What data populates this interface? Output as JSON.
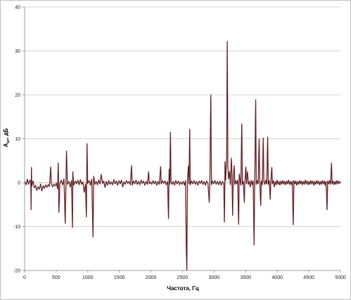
{
  "chart_data": {
    "type": "line",
    "title": "",
    "xlabel": "Частота, Гц",
    "ylabel_main": "A",
    "ylabel_sub": "ап",
    "ylabel_unit": ", дБ",
    "xlim": [
      0,
      5000
    ],
    "ylim": [
      -20,
      40
    ],
    "x_ticks": [
      0,
      500,
      1000,
      1500,
      2000,
      2500,
      3000,
      3500,
      4000,
      4500,
      5000
    ],
    "y_ticks": [
      -20,
      -10,
      0,
      10,
      20,
      30,
      40
    ],
    "grid": {
      "horizontal": true,
      "vertical": false
    },
    "legend": "none",
    "colors": {
      "series_dark": "#2b1a1a",
      "series_red": "#c0404a",
      "grid": "#c8c8c8",
      "axis": "#888888"
    },
    "series": [
      {
        "values_description": "",
        "points": [
          [
            0,
            0.3
          ],
          [
            20,
            -0.5
          ],
          [
            40,
            0.8
          ],
          [
            60,
            -0.4
          ],
          [
            80,
            0.6
          ],
          [
            95,
            0.2
          ],
          [
            100,
            -6.2
          ],
          [
            105,
            3.5
          ],
          [
            110,
            -0.8
          ],
          [
            130,
            0.4
          ],
          [
            150,
            -1.2
          ],
          [
            170,
            -0.6
          ],
          [
            190,
            -1.8
          ],
          [
            210,
            -0.9
          ],
          [
            230,
            -1.5
          ],
          [
            250,
            -0.3
          ],
          [
            270,
            -1.9
          ],
          [
            290,
            -0.7
          ],
          [
            310,
            -1.3
          ],
          [
            330,
            -0.5
          ],
          [
            350,
            -1.1
          ],
          [
            370,
            -0.4
          ],
          [
            390,
            -0.9
          ],
          [
            410,
            3.6
          ],
          [
            420,
            -0.2
          ],
          [
            440,
            -1.0
          ],
          [
            460,
            -0.3
          ],
          [
            480,
            -0.8
          ],
          [
            500,
            -0.1
          ],
          [
            520,
            -1.4
          ],
          [
            530,
            4.5
          ],
          [
            540,
            -6.8
          ],
          [
            555,
            -0.3
          ],
          [
            575,
            0.6
          ],
          [
            600,
            -0.5
          ],
          [
            620,
            0.9
          ],
          [
            640,
            -9.3
          ],
          [
            660,
            7.2
          ],
          [
            675,
            -0.4
          ],
          [
            700,
            0.3
          ],
          [
            720,
            -1.0
          ],
          [
            740,
            0.5
          ],
          [
            755,
            -10.2
          ],
          [
            760,
            2.5
          ],
          [
            775,
            -0.6
          ],
          [
            800,
            0.4
          ],
          [
            820,
            -0.3
          ],
          [
            840,
            0.6
          ],
          [
            860,
            -0.5
          ],
          [
            880,
            0.7
          ],
          [
            900,
            -0.4
          ],
          [
            920,
            0.2
          ],
          [
            940,
            -2.2
          ],
          [
            960,
            -0.3
          ],
          [
            975,
            -7.8
          ],
          [
            985,
            8.9
          ],
          [
            995,
            -0.2
          ],
          [
            1020,
            0.5
          ],
          [
            1040,
            -0.6
          ],
          [
            1060,
            0.8
          ],
          [
            1080,
            -12.4
          ],
          [
            1090,
            1.5
          ],
          [
            1110,
            -0.4
          ],
          [
            1130,
            0.3
          ],
          [
            1150,
            -0.5
          ],
          [
            1170,
            0.6
          ],
          [
            1190,
            -0.3
          ],
          [
            1210,
            1.9
          ],
          [
            1230,
            -0.2
          ],
          [
            1250,
            0.4
          ],
          [
            1270,
            -1.1
          ],
          [
            1290,
            0.3
          ],
          [
            1310,
            -0.6
          ],
          [
            1330,
            0.5
          ],
          [
            1350,
            -0.4
          ],
          [
            1370,
            0.2
          ],
          [
            1390,
            -0.5
          ],
          [
            1410,
            0.7
          ],
          [
            1430,
            -0.3
          ],
          [
            1450,
            0.4
          ],
          [
            1470,
            -0.6
          ],
          [
            1490,
            0.5
          ],
          [
            1510,
            -0.3
          ],
          [
            1530,
            0.6
          ],
          [
            1550,
            -1.0
          ],
          [
            1570,
            0.2
          ],
          [
            1590,
            -0.4
          ],
          [
            1610,
            0.5
          ],
          [
            1630,
            -0.2
          ],
          [
            1650,
            0.3
          ],
          [
            1670,
            -0.5
          ],
          [
            1690,
            3.9
          ],
          [
            1700,
            -0.6
          ],
          [
            1720,
            0.4
          ],
          [
            1740,
            -0.3
          ],
          [
            1760,
            0.6
          ],
          [
            1780,
            -0.4
          ],
          [
            1800,
            0.3
          ],
          [
            1820,
            -0.5
          ],
          [
            1840,
            0.6
          ],
          [
            1860,
            -0.2
          ],
          [
            1880,
            0.4
          ],
          [
            1900,
            -0.6
          ],
          [
            1920,
            0.3
          ],
          [
            1940,
            -0.4
          ],
          [
            1960,
            2.5
          ],
          [
            1970,
            -0.3
          ],
          [
            1990,
            0.2
          ],
          [
            2010,
            -0.4
          ],
          [
            2030,
            0.5
          ],
          [
            2050,
            -0.3
          ],
          [
            2070,
            0.4
          ],
          [
            2090,
            -0.6
          ],
          [
            2110,
            0.3
          ],
          [
            2130,
            -0.4
          ],
          [
            2150,
            3.7
          ],
          [
            2160,
            -0.3
          ],
          [
            2180,
            0.5
          ],
          [
            2200,
            -0.2
          ],
          [
            2220,
            0.4
          ],
          [
            2240,
            -0.5
          ],
          [
            2260,
            0.3
          ],
          [
            2275,
            -8.2
          ],
          [
            2285,
            3.1
          ],
          [
            2295,
            -0.4
          ],
          [
            2305,
            11.5
          ],
          [
            2315,
            0.2
          ],
          [
            2330,
            -0.4
          ],
          [
            2350,
            0.3
          ],
          [
            2370,
            -0.6
          ],
          [
            2390,
            0.5
          ],
          [
            2410,
            -0.3
          ],
          [
            2430,
            0.4
          ],
          [
            2450,
            -0.5
          ],
          [
            2470,
            0.2
          ],
          [
            2490,
            -0.4
          ],
          [
            2510,
            0.3
          ],
          [
            2530,
            -0.6
          ],
          [
            2545,
            0.5
          ],
          [
            2555,
            -14.0
          ],
          [
            2565,
            -20.0
          ],
          [
            2575,
            0.4
          ],
          [
            2590,
            3.8
          ],
          [
            2600,
            -0.3
          ],
          [
            2610,
            12.2
          ],
          [
            2620,
            -0.5
          ],
          [
            2640,
            0.4
          ],
          [
            2660,
            -0.3
          ],
          [
            2680,
            0.5
          ],
          [
            2700,
            -0.4
          ],
          [
            2720,
            0.3
          ],
          [
            2740,
            -0.6
          ],
          [
            2760,
            0.4
          ],
          [
            2780,
            -0.2
          ],
          [
            2800,
            0.5
          ],
          [
            2820,
            -0.4
          ],
          [
            2840,
            0.3
          ],
          [
            2860,
            -0.6
          ],
          [
            2880,
            0.4
          ],
          [
            2900,
            -0.3
          ],
          [
            2920,
            -4.5
          ],
          [
            2930,
            0.6
          ],
          [
            2945,
            20.0
          ],
          [
            2955,
            -0.5
          ],
          [
            2970,
            0.4
          ],
          [
            2990,
            -0.3
          ],
          [
            3010,
            0.5
          ],
          [
            3030,
            -0.4
          ],
          [
            3050,
            0.3
          ],
          [
            3070,
            -0.5
          ],
          [
            3090,
            0.4
          ],
          [
            3110,
            -0.6
          ],
          [
            3130,
            0.3
          ],
          [
            3150,
            -0.2
          ],
          [
            3160,
            -9.0
          ],
          [
            3170,
            4.8
          ],
          [
            3180,
            0.5
          ],
          [
            3195,
            6.2
          ],
          [
            3205,
            32.2
          ],
          [
            3215,
            3.5
          ],
          [
            3225,
            0.8
          ],
          [
            3240,
            2.6
          ],
          [
            3255,
            -0.5
          ],
          [
            3270,
            5.6
          ],
          [
            3280,
            1.8
          ],
          [
            3290,
            -7.5
          ],
          [
            3300,
            0.6
          ],
          [
            3315,
            3.9
          ],
          [
            3325,
            -0.4
          ],
          [
            3340,
            0.5
          ],
          [
            3355,
            -0.3
          ],
          [
            3370,
            0.6
          ],
          [
            3385,
            -9.5
          ],
          [
            3395,
            2.0
          ],
          [
            3410,
            0.4
          ],
          [
            3420,
            -0.6
          ],
          [
            3435,
            13.4
          ],
          [
            3445,
            -0.4
          ],
          [
            3460,
            0.3
          ],
          [
            3475,
            -4.5
          ],
          [
            3485,
            0.5
          ],
          [
            3500,
            3.6
          ],
          [
            3510,
            -0.3
          ],
          [
            3525,
            2.5
          ],
          [
            3540,
            -0.4
          ],
          [
            3555,
            0.3
          ],
          [
            3570,
            -1.0
          ],
          [
            3585,
            0.6
          ],
          [
            3600,
            -0.5
          ],
          [
            3615,
            0.4
          ],
          [
            3630,
            -14.2
          ],
          [
            3640,
            0.6
          ],
          [
            3655,
            18.9
          ],
          [
            3665,
            -0.4
          ],
          [
            3680,
            0.5
          ],
          [
            3695,
            -0.3
          ],
          [
            3710,
            10.0
          ],
          [
            3720,
            0.3
          ],
          [
            3735,
            -5.2
          ],
          [
            3745,
            0.4
          ],
          [
            3760,
            -0.5
          ],
          [
            3775,
            10.2
          ],
          [
            3785,
            0.3
          ],
          [
            3800,
            -0.4
          ],
          [
            3815,
            0.6
          ],
          [
            3830,
            -0.3
          ],
          [
            3845,
            10.4
          ],
          [
            3855,
            -0.4
          ],
          [
            3870,
            0.5
          ],
          [
            3885,
            -3.8
          ],
          [
            3895,
            0.4
          ],
          [
            3910,
            3.5
          ],
          [
            3920,
            -0.3
          ],
          [
            3935,
            0.5
          ],
          [
            3950,
            -1.0
          ],
          [
            3965,
            0.3
          ],
          [
            3980,
            -0.5
          ],
          [
            3995,
            0.6
          ],
          [
            4010,
            -0.4
          ],
          [
            4025,
            0.3
          ],
          [
            4040,
            -0.6
          ],
          [
            4055,
            0.4
          ],
          [
            4070,
            -0.3
          ],
          [
            4085,
            0.5
          ],
          [
            4100,
            -0.4
          ],
          [
            4115,
            0.3
          ],
          [
            4130,
            -0.5
          ],
          [
            4145,
            0.4
          ],
          [
            4160,
            -0.3
          ],
          [
            4175,
            0.6
          ],
          [
            4190,
            -0.4
          ],
          [
            4205,
            0.3
          ],
          [
            4220,
            -0.5
          ],
          [
            4235,
            0.4
          ],
          [
            4250,
            -9.6
          ],
          [
            4260,
            0.5
          ],
          [
            4275,
            -0.3
          ],
          [
            4290,
            0.4
          ],
          [
            4305,
            -0.6
          ],
          [
            4320,
            0.3
          ],
          [
            4335,
            -0.4
          ],
          [
            4350,
            0.5
          ],
          [
            4365,
            -0.3
          ],
          [
            4380,
            0.4
          ],
          [
            4395,
            -0.5
          ],
          [
            4410,
            0.3
          ],
          [
            4425,
            -0.4
          ],
          [
            4440,
            0.6
          ],
          [
            4455,
            -0.3
          ],
          [
            4470,
            0.4
          ],
          [
            4485,
            -0.5
          ],
          [
            4500,
            0.3
          ],
          [
            4515,
            -0.4
          ],
          [
            4530,
            0.5
          ],
          [
            4545,
            -0.3
          ],
          [
            4560,
            0.4
          ],
          [
            4575,
            -0.6
          ],
          [
            4590,
            0.3
          ],
          [
            4605,
            -0.4
          ],
          [
            4620,
            0.5
          ],
          [
            4635,
            -0.3
          ],
          [
            4650,
            0.4
          ],
          [
            4665,
            -0.5
          ],
          [
            4680,
            0.3
          ],
          [
            4695,
            -0.4
          ],
          [
            4710,
            0.5
          ],
          [
            4725,
            -0.3
          ],
          [
            4740,
            0.4
          ],
          [
            4755,
            -0.6
          ],
          [
            4770,
            0.3
          ],
          [
            4785,
            -6.2
          ],
          [
            4795,
            0.4
          ],
          [
            4810,
            -0.3
          ],
          [
            4825,
            0.5
          ],
          [
            4840,
            -0.4
          ],
          [
            4855,
            4.5
          ],
          [
            4865,
            -0.3
          ],
          [
            4880,
            0.4
          ],
          [
            4895,
            -0.5
          ],
          [
            4910,
            0.3
          ],
          [
            4925,
            -0.4
          ],
          [
            4940,
            0.5
          ],
          [
            4955,
            -0.3
          ],
          [
            4970,
            0.4
          ],
          [
            4985,
            -0.2
          ],
          [
            5000,
            0.2
          ]
        ]
      }
    ]
  }
}
